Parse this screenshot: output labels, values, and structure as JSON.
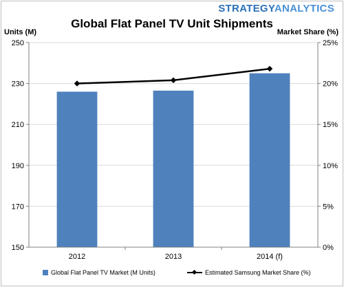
{
  "brand": {
    "part1": "STRATEGY",
    "part2": "ANALYTICS"
  },
  "chart_data": {
    "type": "bar",
    "title": "Global Flat Panel TV Unit Shipments",
    "categories": [
      "2012",
      "2013",
      "2014 (f)"
    ],
    "y_left": {
      "label": "Units (M)",
      "range": [
        150,
        250
      ],
      "ticks": [
        "150",
        "170",
        "190",
        "210",
        "230",
        "250"
      ]
    },
    "y_right": {
      "label": "Market Share (%)",
      "range": [
        0,
        25
      ],
      "ticks": [
        "0%",
        "5%",
        "10%",
        "15%",
        "20%",
        "25%"
      ]
    },
    "series": [
      {
        "name": "Global Flat Panel TV Market (M Units)",
        "type": "bar",
        "axis": "left",
        "color": "#4f81bd",
        "values": [
          226,
          226.5,
          235
        ]
      },
      {
        "name": "Estimated Samsung Market Share (%)",
        "type": "line",
        "axis": "right",
        "color": "#000000",
        "values": [
          20.0,
          20.4,
          21.8
        ]
      }
    ],
    "grid": true,
    "legend_position": "bottom"
  }
}
